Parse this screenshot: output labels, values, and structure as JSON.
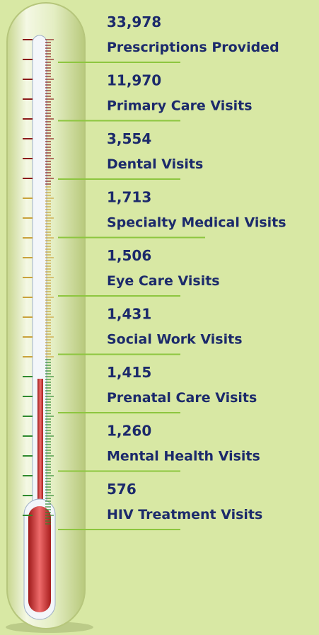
{
  "items": [
    {
      "number": "33,978",
      "label": "Prescriptions Provided"
    },
    {
      "number": "11,970",
      "label": "Primary Care Visits"
    },
    {
      "number": "3,554",
      "label": "Dental Visits"
    },
    {
      "number": "1,713",
      "label": "Specialty Medical Visits"
    },
    {
      "number": "1,506",
      "label": "Eye Care Visits"
    },
    {
      "number": "1,431",
      "label": "Social Work Visits"
    },
    {
      "number": "1,415",
      "label": "Prenatal Care Visits"
    },
    {
      "number": "1,260",
      "label": "Mental Health Visits"
    },
    {
      "number": "576",
      "label": "HIV Treatment Visits"
    }
  ]
}
